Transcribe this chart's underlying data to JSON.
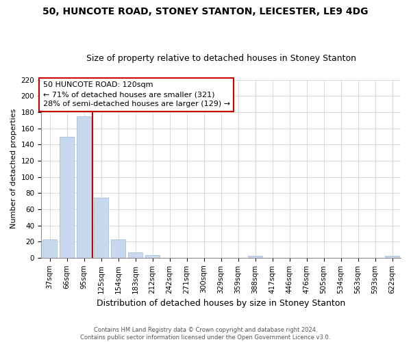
{
  "title": "50, HUNCOTE ROAD, STONEY STANTON, LEICESTER, LE9 4DG",
  "subtitle": "Size of property relative to detached houses in Stoney Stanton",
  "xlabel": "Distribution of detached houses by size in Stoney Stanton",
  "ylabel": "Number of detached properties",
  "bar_labels": [
    "37sqm",
    "66sqm",
    "95sqm",
    "125sqm",
    "154sqm",
    "183sqm",
    "212sqm",
    "242sqm",
    "271sqm",
    "300sqm",
    "329sqm",
    "359sqm",
    "388sqm",
    "417sqm",
    "446sqm",
    "476sqm",
    "505sqm",
    "534sqm",
    "563sqm",
    "593sqm",
    "622sqm"
  ],
  "bar_values": [
    23,
    150,
    175,
    74,
    23,
    7,
    3,
    0,
    0,
    0,
    0,
    0,
    2,
    0,
    0,
    0,
    0,
    0,
    0,
    0,
    2
  ],
  "bar_color": "#c8d9ee",
  "bar_edge_color": "#a8c0dd",
  "vline_color": "#cc0000",
  "vline_x_idx": 2.5,
  "ylim": [
    0,
    220
  ],
  "yticks": [
    0,
    20,
    40,
    60,
    80,
    100,
    120,
    140,
    160,
    180,
    200,
    220
  ],
  "annotation_title": "50 HUNCOTE ROAD: 120sqm",
  "annotation_line1": "← 71% of detached houses are smaller (321)",
  "annotation_line2": "28% of semi-detached houses are larger (129) →",
  "footer1": "Contains HM Land Registry data © Crown copyright and database right 2024.",
  "footer2": "Contains public sector information licensed under the Open Government Licence v3.0.",
  "background_color": "#ffffff",
  "grid_color": "#cccccc",
  "title_fontsize": 10,
  "subtitle_fontsize": 9,
  "ylabel_fontsize": 8,
  "xlabel_fontsize": 9,
  "tick_fontsize": 7.5,
  "ann_fontsize": 8
}
